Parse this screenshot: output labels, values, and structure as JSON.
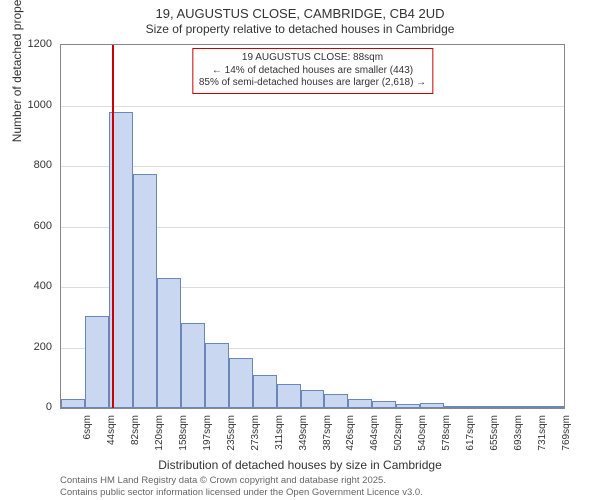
{
  "title": "19, AUGUSTUS CLOSE, CAMBRIDGE, CB4 2UD",
  "subtitle": "Size of property relative to detached houses in Cambridge",
  "chart": {
    "type": "histogram",
    "ylabel": "Number of detached properties",
    "xlabel": "Distribution of detached houses by size in Cambridge",
    "ylim": [
      0,
      1200
    ],
    "ytick_step": 200,
    "yticks": [
      0,
      200,
      400,
      600,
      800,
      1000,
      1200
    ],
    "bar_fill": "#c9d8f0",
    "bar_stroke": "#6a87b8",
    "grid_color": "#dddddd",
    "axis_color": "#888888",
    "background_color": "#ffffff",
    "marker_color": "#cc0000",
    "marker_value": 88,
    "x_start": 6,
    "x_step": 38.3,
    "x_count": 21,
    "xticks": [
      "6sqm",
      "44sqm",
      "82sqm",
      "120sqm",
      "158sqm",
      "197sqm",
      "235sqm",
      "273sqm",
      "311sqm",
      "349sqm",
      "387sqm",
      "426sqm",
      "464sqm",
      "502sqm",
      "540sqm",
      "578sqm",
      "617sqm",
      "655sqm",
      "693sqm",
      "731sqm",
      "769sqm"
    ],
    "values": [
      30,
      305,
      980,
      775,
      430,
      280,
      215,
      165,
      110,
      80,
      60,
      45,
      30,
      22,
      12,
      15,
      5,
      3,
      2,
      2,
      1
    ],
    "annotation": {
      "line1": "19 AUGUSTUS CLOSE: 88sqm",
      "line2": "← 14% of detached houses are smaller (443)",
      "line3": "85% of semi-detached houses are larger (2,618) →",
      "border_color": "#cc0000",
      "bg_color": "#ffffff",
      "fontsize": 10
    }
  },
  "footer": {
    "line1": "Contains HM Land Registry data © Crown copyright and database right 2025.",
    "line2": "Contains public sector information licensed under the Open Government Licence v3.0."
  }
}
